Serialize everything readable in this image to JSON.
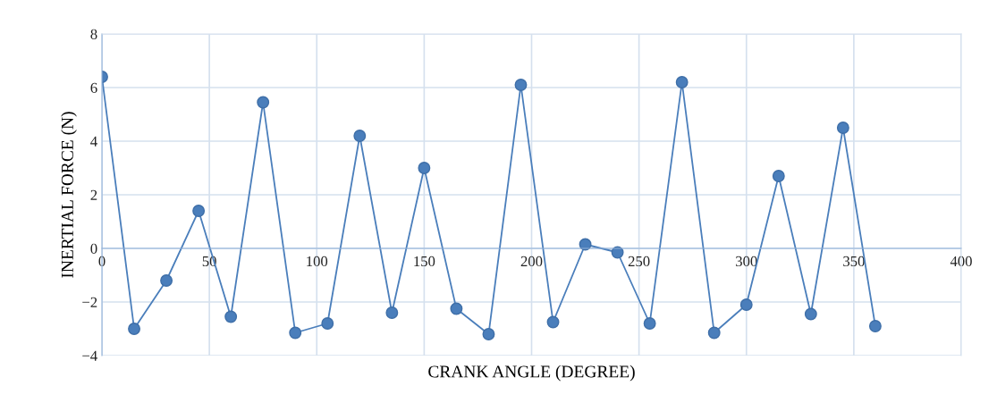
{
  "chart_data": {
    "type": "line",
    "xlabel": "CRANK ANGLE (DEGREE)",
    "ylabel": "INERTIAL FORCE (N)",
    "x": [
      0,
      15,
      30,
      45,
      60,
      75,
      90,
      105,
      120,
      135,
      150,
      165,
      180,
      195,
      210,
      225,
      240,
      255,
      270,
      285,
      300,
      315,
      330,
      345,
      360
    ],
    "series": [
      {
        "color": "#4a7ebb",
        "values": [
          6.4,
          -3.0,
          -1.2,
          1.4,
          -2.55,
          5.45,
          -3.15,
          -2.8,
          4.2,
          -2.4,
          3.0,
          -2.25,
          -3.2,
          6.1,
          -2.75,
          0.15,
          -0.15,
          -2.8,
          6.2,
          -3.15,
          -2.1,
          2.7,
          -2.45,
          4.5,
          -2.9
        ]
      }
    ],
    "marker": "circle",
    "line_style": "solid",
    "grid": true,
    "xlim": [
      0,
      400
    ],
    "xticks": [
      0,
      50,
      100,
      150,
      200,
      250,
      300,
      350,
      400
    ],
    "ylim": [
      -4,
      8
    ],
    "yticks": [
      -4,
      -2,
      0,
      2,
      4,
      6,
      8
    ]
  }
}
